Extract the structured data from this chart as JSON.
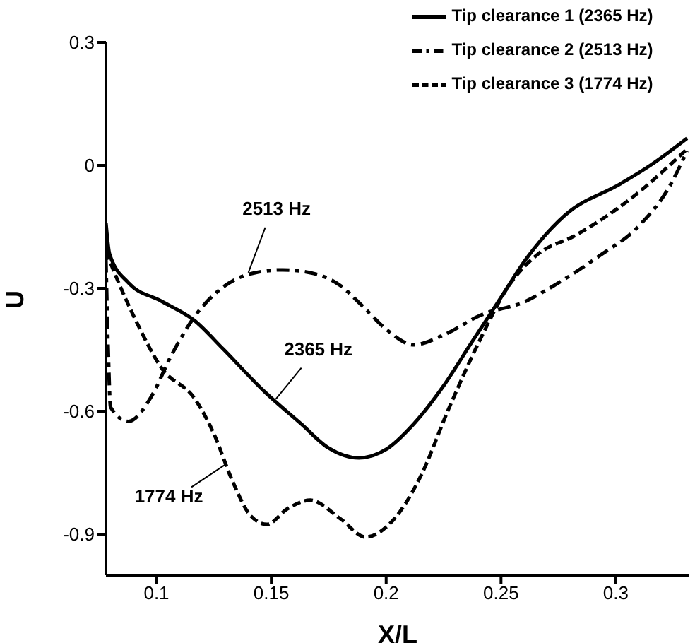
{
  "chart_data": {
    "type": "line",
    "xlabel": "X/L",
    "ylabel": "U",
    "xlim": [
      0.078,
      0.332
    ],
    "xticks": [
      0.1,
      0.15,
      0.2,
      0.25,
      0.3
    ],
    "ylim": [
      -1,
      0.3
    ],
    "yticks": [
      -0.9,
      -0.6,
      -0.3,
      0,
      0.3
    ],
    "grid": false,
    "legend": "top right",
    "marker": "none",
    "series": [
      {
        "name": "Tip clearance 1 (2365 Hz)",
        "color": "#000000",
        "line_style": "solid",
        "x": [
          0.078,
          0.0796,
          0.0877,
          0.102,
          0.1166,
          0.129,
          0.147,
          0.163,
          0.175,
          0.188,
          0.2,
          0.212,
          0.225,
          0.237,
          0.249,
          0.261,
          0.278,
          0.302,
          0.315,
          0.331
        ],
        "values": [
          -0.14,
          -0.217,
          -0.286,
          -0.331,
          -0.379,
          -0.448,
          -0.552,
          -0.631,
          -0.69,
          -0.714,
          -0.693,
          -0.631,
          -0.538,
          -0.434,
          -0.331,
          -0.228,
          -0.121,
          -0.045,
          0,
          0.066
        ]
      },
      {
        "name": "Tip clearance 2 (2513 Hz)",
        "color": "#000000",
        "line_style": "dashdot",
        "x": [
          0.078,
          0.079,
          0.08,
          0.0877,
          0.098,
          0.106,
          0.117,
          0.129,
          0.143,
          0.155,
          0.167,
          0.18,
          0.19,
          0.2,
          0.212,
          0.225,
          0.241,
          0.261,
          0.272,
          0.292,
          0.31,
          0.323,
          0.331
        ],
        "values": [
          -0.23,
          -0.45,
          -0.59,
          -0.625,
          -0.562,
          -0.469,
          -0.366,
          -0.297,
          -0.262,
          -0.255,
          -0.262,
          -0.293,
          -0.345,
          -0.4,
          -0.438,
          -0.414,
          -0.366,
          -0.331,
          -0.297,
          -0.224,
          -0.148,
          -0.055,
          0.035
        ]
      },
      {
        "name": "Tip clearance 3 (1774 Hz)",
        "color": "#000000",
        "line_style": "dashed",
        "x": [
          0.078,
          0.0835,
          0.092,
          0.102,
          0.117,
          0.125,
          0.133,
          0.141,
          0.148,
          0.157,
          0.167,
          0.18,
          0.191,
          0.202,
          0.215,
          0.227,
          0.241,
          0.253,
          0.266,
          0.282,
          0.307,
          0.331
        ],
        "values": [
          -0.21,
          -0.286,
          -0.39,
          -0.493,
          -0.572,
          -0.655,
          -0.769,
          -0.855,
          -0.876,
          -0.838,
          -0.817,
          -0.862,
          -0.907,
          -0.872,
          -0.759,
          -0.597,
          -0.424,
          -0.297,
          -0.217,
          -0.172,
          -0.079,
          0.04
        ]
      }
    ],
    "annotations": [
      {
        "text": "2513 Hz",
        "x": 0.14,
        "y": -0.262
      },
      {
        "text": "2365 Hz",
        "x": 0.152,
        "y": -0.57
      },
      {
        "text": "1774 Hz",
        "x": 0.13,
        "y": -0.73
      }
    ]
  }
}
